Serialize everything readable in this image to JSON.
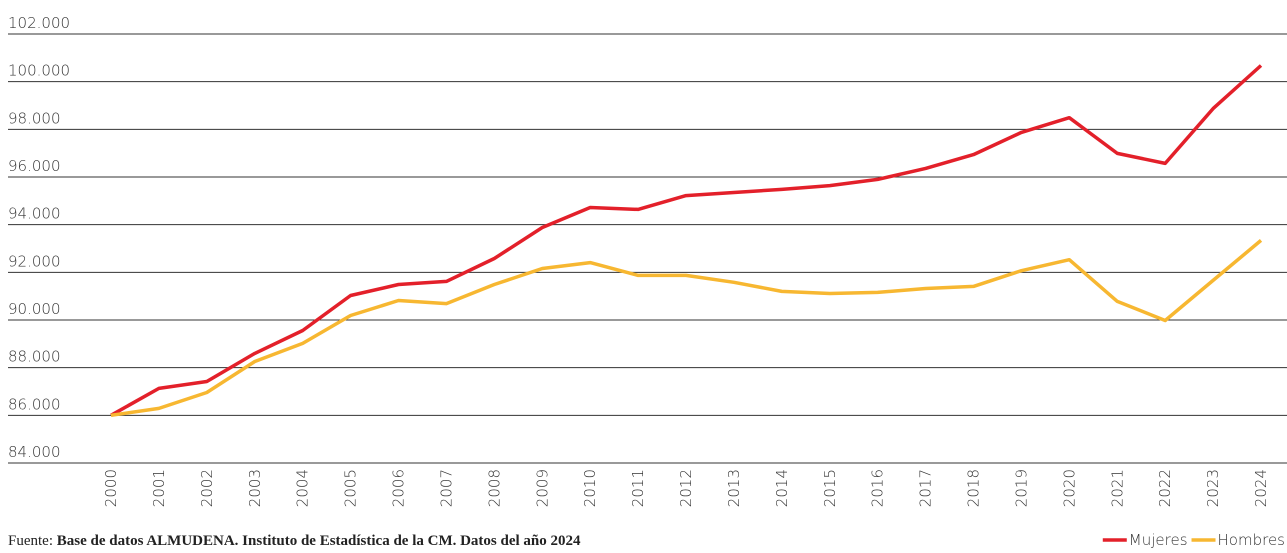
{
  "chart_data": {
    "type": "line",
    "categories": [
      "2000",
      "2001",
      "2002",
      "2003",
      "2004",
      "2005",
      "2006",
      "2007",
      "2008",
      "2009",
      "2010",
      "2011",
      "2012",
      "2013",
      "2014",
      "2015",
      "2016",
      "2017",
      "2018",
      "2019",
      "2020",
      "2021",
      "2022",
      "2023",
      "2024"
    ],
    "series": [
      {
        "name": "Mujeres",
        "color": "#e3202a",
        "values": [
          86000,
          87130,
          87420,
          88600,
          89560,
          91030,
          91490,
          91620,
          92580,
          93880,
          94720,
          94640,
          95220,
          95350,
          95480,
          95640,
          95900,
          96360,
          96940,
          97870,
          98490,
          96990,
          96570,
          98870,
          100680
        ]
      },
      {
        "name": "Hombres",
        "color": "#f7b731",
        "values": [
          86000,
          86290,
          86960,
          88260,
          89020,
          90190,
          90820,
          90690,
          91490,
          92160,
          92410,
          91870,
          91870,
          91580,
          91200,
          91110,
          91160,
          91320,
          91410,
          92070,
          92530,
          90780,
          89980,
          91660,
          93340
        ]
      }
    ],
    "ylim": [
      84000,
      102000
    ],
    "yticks": [
      {
        "value": 84000,
        "label": "84.000"
      },
      {
        "value": 86000,
        "label": "86.000"
      },
      {
        "value": 88000,
        "label": "88.000"
      },
      {
        "value": 90000,
        "label": "90.000"
      },
      {
        "value": 92000,
        "label": "92.000"
      },
      {
        "value": 94000,
        "label": "94.000"
      },
      {
        "value": 96000,
        "label": "96.000"
      },
      {
        "value": 98000,
        "label": "98.000"
      },
      {
        "value": 100000,
        "label": "100.000"
      },
      {
        "value": 102000,
        "label": "102.000"
      }
    ],
    "grid": true,
    "legend": "bottom-right",
    "source_label": "Fuente:",
    "source": "Base de datos ALMUDENA. Instituto de Estadística de la CM. Datos del año 2024"
  }
}
